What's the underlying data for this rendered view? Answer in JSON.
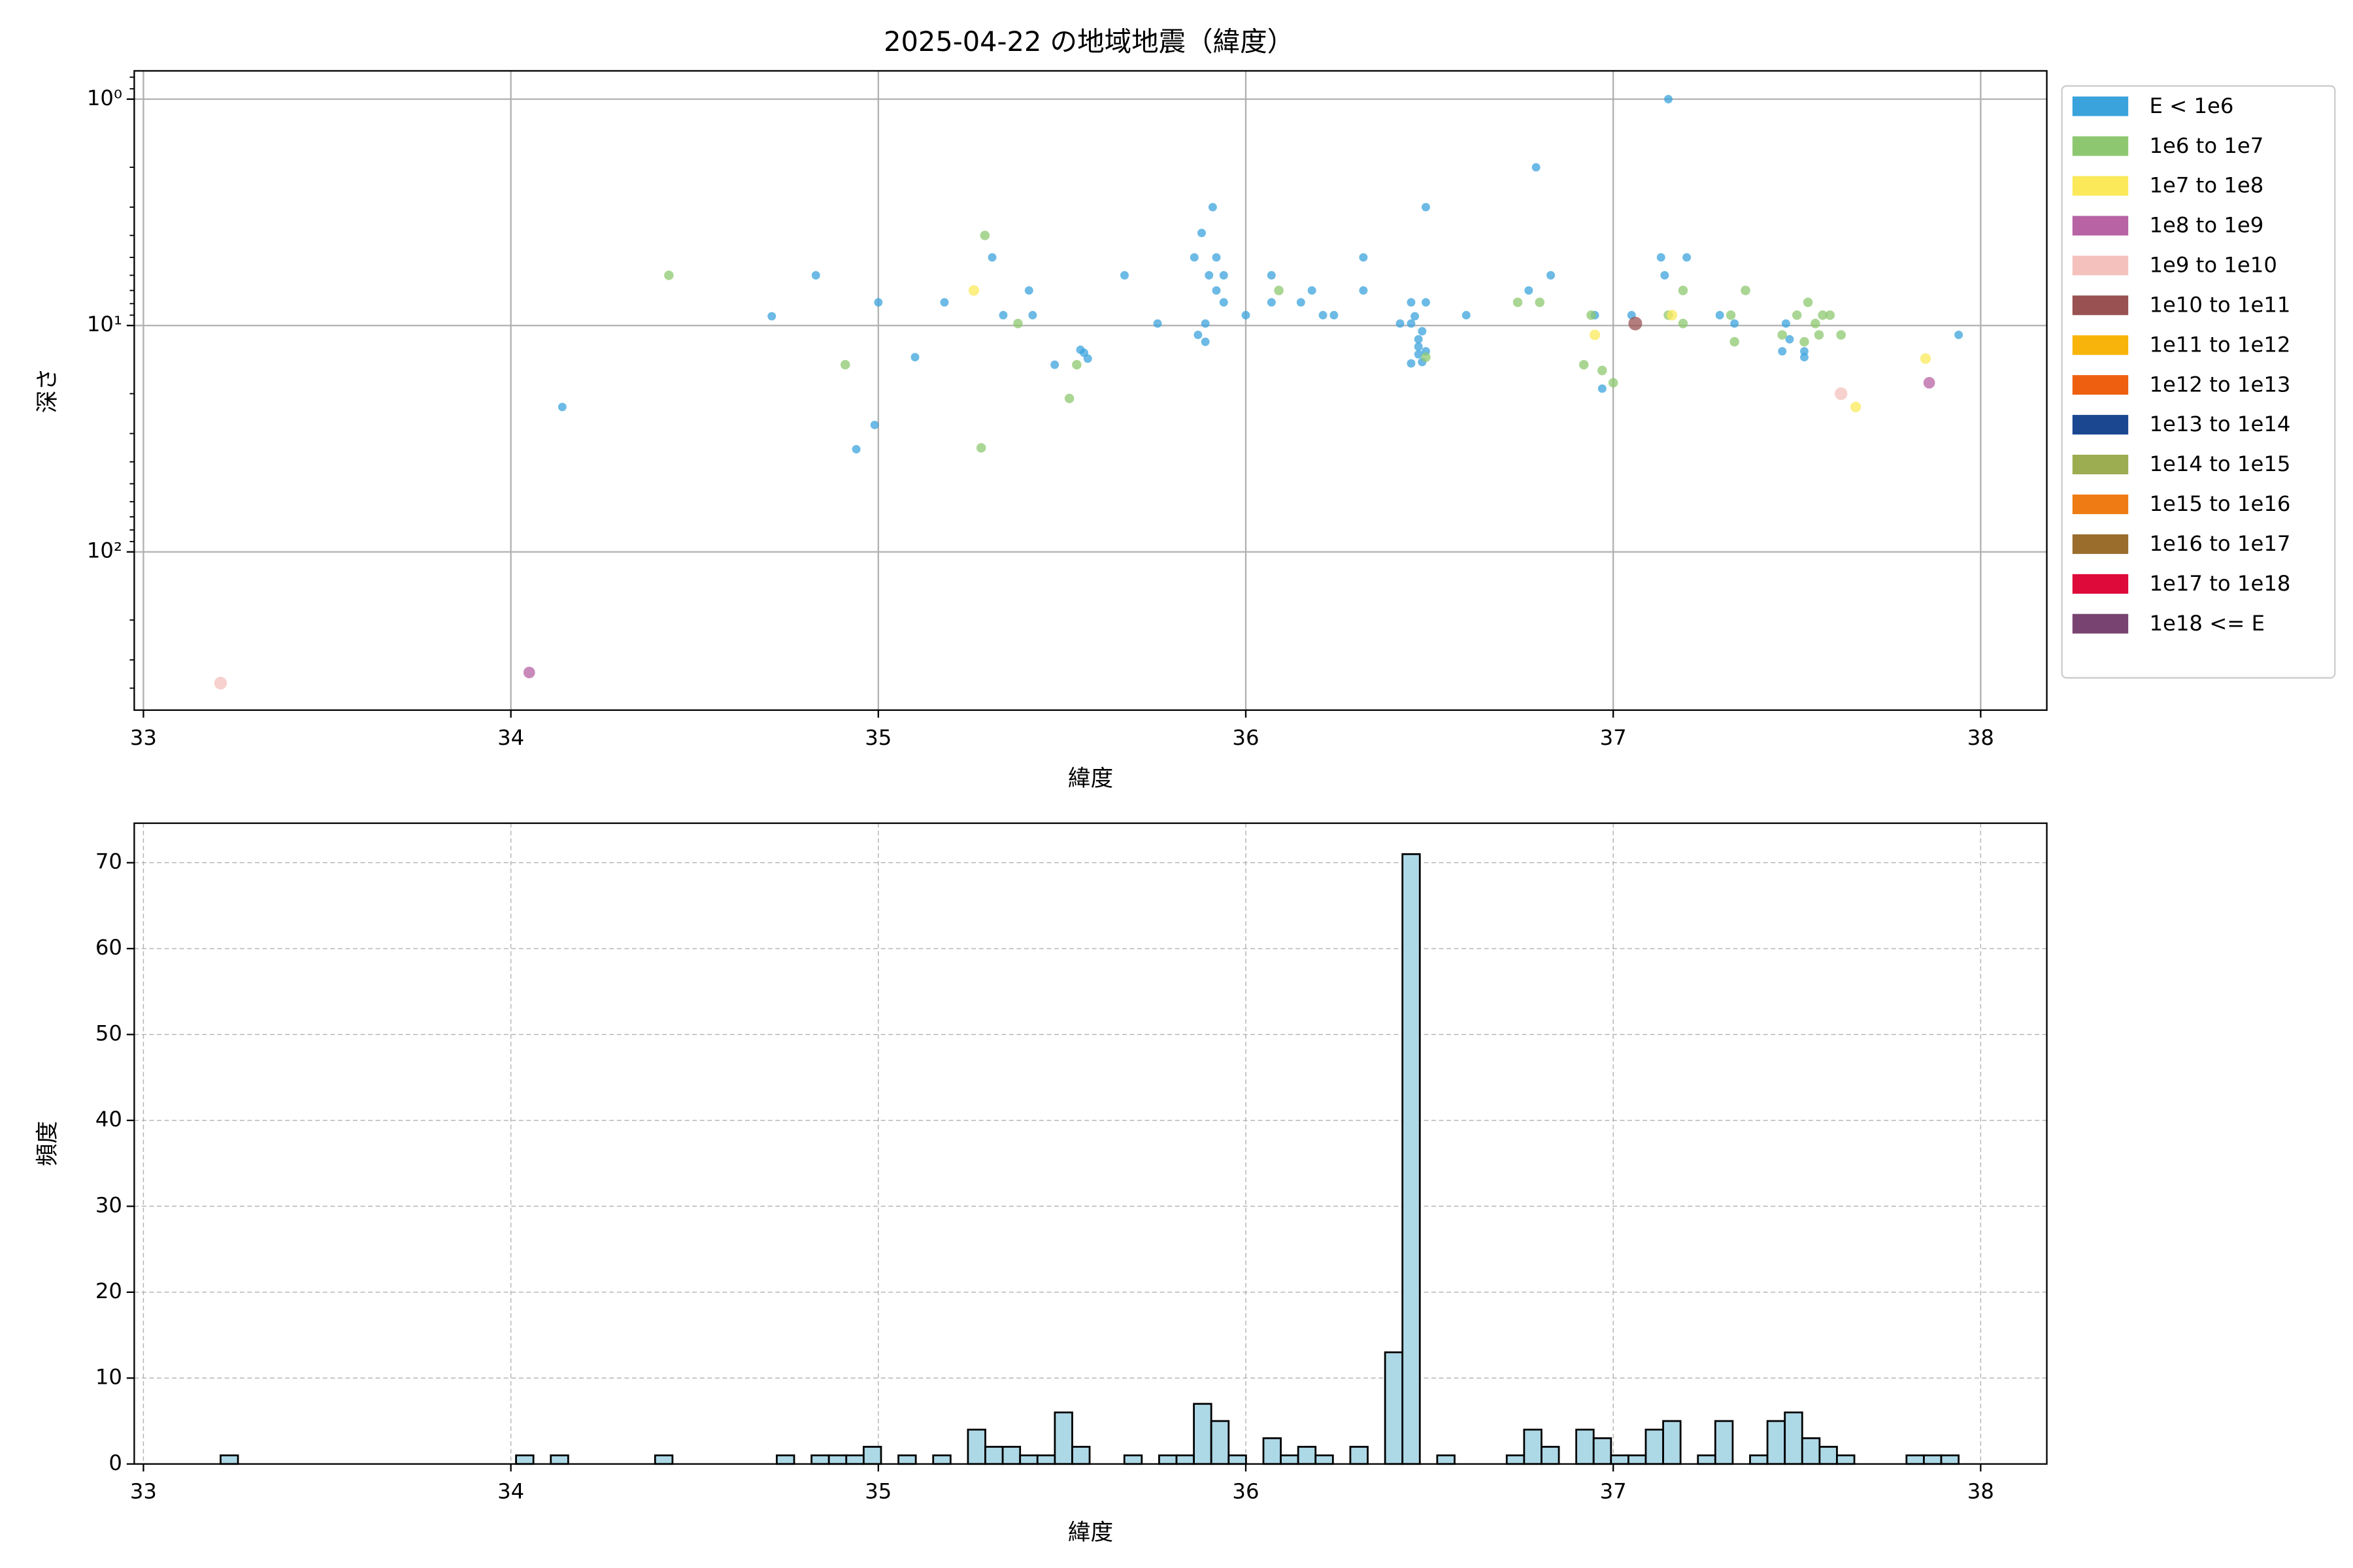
{
  "chart_data": [
    {
      "type": "scatter",
      "title": "2025-04-22 の地域地震（緯度）",
      "xlabel": "緯度",
      "ylabel": "深さ",
      "xlim": [
        32.975,
        38.18
      ],
      "xticks": [
        33,
        34,
        35,
        36,
        37,
        38
      ],
      "ylog": true,
      "ylim": [
        500,
        0.75
      ],
      "yticks": [
        {
          "value": 1,
          "label": "10⁰"
        },
        {
          "value": 10,
          "label": "10¹"
        },
        {
          "value": 100,
          "label": "10²"
        }
      ],
      "grid": true,
      "legend": "outside-right",
      "series": [
        {
          "name": "E < 1e6",
          "color": "#3ba3dc",
          "x": [
            34.14,
            34.71,
            34.83,
            34.94,
            34.99,
            35.0,
            35.1,
            35.18,
            35.31,
            35.34,
            35.41,
            35.42,
            35.48,
            35.55,
            35.56,
            35.57,
            35.67,
            35.76,
            35.86,
            35.87,
            35.88,
            35.89,
            35.89,
            35.9,
            35.91,
            35.92,
            35.92,
            35.94,
            35.94,
            36.0,
            36.07,
            36.07,
            36.15,
            36.18,
            36.21,
            36.24,
            36.32,
            36.32,
            36.42,
            36.45,
            36.45,
            36.45,
            36.46,
            36.47,
            36.47,
            36.47,
            36.48,
            36.48,
            36.49,
            36.49,
            36.49,
            36.6,
            36.77,
            36.79,
            36.83,
            36.95,
            36.97,
            37.05,
            37.13,
            37.14,
            37.15,
            37.2,
            37.29,
            37.33,
            37.46,
            37.47,
            37.48,
            37.52,
            37.52,
            37.94
          ],
          "y": [
            22.9,
            9.1,
            6.0,
            35.2,
            27.5,
            7.9,
            13.8,
            7.9,
            5.0,
            9.0,
            7.0,
            9.0,
            14.9,
            12.8,
            13.2,
            14.0,
            6.0,
            9.8,
            5.0,
            11,
            3.9,
            9.8,
            11.8,
            6.0,
            3.0,
            7.0,
            5.0,
            6.0,
            7.9,
            9.0,
            6.0,
            7.9,
            7.9,
            7.0,
            9.0,
            9.0,
            5.0,
            7.0,
            9.8,
            9.8,
            7.9,
            14.7,
            9.1,
            11.5,
            12.4,
            13.4,
            10.6,
            14.5,
            7.9,
            3.0,
            13,
            9.0,
            7.0,
            2.0,
            6.0,
            9.0,
            19,
            9.0,
            5.0,
            6.0,
            1.0,
            5.0,
            9.0,
            9.8,
            13,
            9.8,
            11.5,
            13,
            13.8,
            11
          ]
        },
        {
          "name": "1e6 to 1e7",
          "color": "#8dc870",
          "x": [
            34.43,
            34.91,
            35.28,
            35.29,
            35.38,
            35.52,
            35.54,
            36.09,
            36.49,
            36.74,
            36.8,
            36.92,
            36.94,
            36.97,
            37.0,
            37.15,
            37.19,
            37.19,
            37.32,
            37.33,
            37.36,
            37.46,
            37.5,
            37.52,
            37.53,
            37.55,
            37.56,
            37.57,
            37.59,
            37.62
          ],
          "y": [
            6.0,
            14.9,
            34.7,
            4.0,
            9.8,
            21,
            14.9,
            7.0,
            13.8,
            7.9,
            7.9,
            14.9,
            9.0,
            15.8,
            17.9,
            9.0,
            7.0,
            9.8,
            9.0,
            11.8,
            7.0,
            11,
            9.0,
            11.8,
            7.9,
            9.8,
            11,
            9.0,
            9.0,
            11
          ]
        },
        {
          "name": "1e7 to 1e8",
          "color": "#fbe95a",
          "x": [
            35.26,
            36.95,
            37.16,
            37.66,
            37.85
          ],
          "y": [
            7.0,
            11,
            9.0,
            22.9,
            14
          ]
        },
        {
          "name": "1e8 to 1e9",
          "color": "#b763a4",
          "x": [
            34.05,
            37.86
          ],
          "y": [
            341,
            17.9
          ]
        },
        {
          "name": "1e9 to 1e10",
          "color": "#f4c1bc",
          "x": [
            33.21,
            37.62
          ],
          "y": [
            380,
            20
          ]
        },
        {
          "name": "1e10 to 1e11",
          "color": "#9a5151",
          "x": [
            37.06
          ],
          "y": [
            9.8
          ]
        },
        {
          "name": "1e11 to 1e12",
          "color": "#f8b40a",
          "x": [],
          "y": []
        },
        {
          "name": "1e12 to 1e13",
          "color": "#ee6010",
          "x": [],
          "y": []
        },
        {
          "name": "1e13 to 1e14",
          "color": "#1a4790",
          "x": [],
          "y": []
        },
        {
          "name": "1e14 to 1e15",
          "color": "#9cac50",
          "x": [],
          "y": []
        },
        {
          "name": "1e15 to 1e16",
          "color": "#ef7b14",
          "x": [],
          "y": []
        },
        {
          "name": "1e16 to 1e17",
          "color": "#9a6d2c",
          "x": [],
          "y": []
        },
        {
          "name": "1e17 to 1e18",
          "color": "#dd0a3a",
          "x": [],
          "y": []
        },
        {
          "name": "1e18 <= E",
          "color": "#784370",
          "x": [],
          "y": []
        }
      ]
    },
    {
      "type": "histogram",
      "xlabel": "緯度",
      "ylabel": "頻度",
      "xlim": [
        32.975,
        38.18
      ],
      "xticks": [
        33,
        34,
        35,
        36,
        37,
        38
      ],
      "ylim": [
        0,
        74.6
      ],
      "yticks": [
        0,
        10,
        20,
        30,
        40,
        50,
        60,
        70
      ],
      "grid": true,
      "grid_style": "dashed",
      "color": "#add8e6",
      "edgecolor": "#000000",
      "bins": [
        33.21,
        33.2573,
        33.3046,
        33.3519,
        33.3992,
        33.4465,
        33.4938,
        33.5411,
        33.5884,
        33.6357,
        33.683,
        33.7303,
        33.7776,
        33.8249,
        33.8722,
        33.9195,
        33.9668,
        34.0141,
        34.0614,
        34.1087,
        34.156,
        34.2033,
        34.2506,
        34.2979,
        34.3452,
        34.3925,
        34.4398,
        34.4871,
        34.5344,
        34.5817,
        34.629,
        34.6763,
        34.7236,
        34.7709,
        34.8182,
        34.8655,
        34.9128,
        34.9601,
        35.0074,
        35.0547,
        35.102,
        35.1493,
        35.1966,
        35.2439,
        35.2912,
        35.3385,
        35.3858,
        35.4331,
        35.4804,
        35.5277,
        35.575,
        35.6223,
        35.6696,
        35.7169,
        35.7642,
        35.8115,
        35.8588,
        35.9061,
        35.9534,
        36.0007,
        36.048,
        36.0953,
        36.1426,
        36.1899,
        36.2372,
        36.2845,
        36.3318,
        36.3791,
        36.4264,
        36.4737,
        36.521,
        36.5683,
        36.6156,
        36.6629,
        36.7102,
        36.7575,
        36.8048,
        36.8521,
        36.8994,
        36.9467,
        36.994,
        37.0413,
        37.0886,
        37.1359,
        37.1832,
        37.2305,
        37.2778,
        37.3251,
        37.3724,
        37.4197,
        37.467,
        37.5143,
        37.5616,
        37.6089,
        37.6562,
        37.7035,
        37.7508,
        37.7981,
        37.8454,
        37.8927,
        37.94
      ],
      "counts": [
        1,
        0,
        0,
        0,
        0,
        0,
        0,
        0,
        0,
        0,
        0,
        0,
        0,
        0,
        0,
        0,
        0,
        1,
        0,
        1,
        0,
        0,
        0,
        0,
        0,
        1,
        0,
        0,
        0,
        0,
        0,
        0,
        1,
        0,
        1,
        1,
        1,
        2,
        0,
        1,
        0,
        1,
        0,
        4,
        2,
        2,
        1,
        1,
        6,
        2,
        0,
        0,
        1,
        0,
        1,
        1,
        7,
        5,
        1,
        0,
        3,
        1,
        2,
        1,
        0,
        2,
        0,
        13,
        71,
        0,
        1,
        0,
        0,
        0,
        1,
        4,
        2,
        0,
        4,
        3,
        1,
        1,
        4,
        5,
        0,
        1,
        5,
        0,
        1,
        5,
        6,
        3,
        2,
        1,
        0,
        0,
        0,
        1,
        1,
        1
      ]
    }
  ]
}
